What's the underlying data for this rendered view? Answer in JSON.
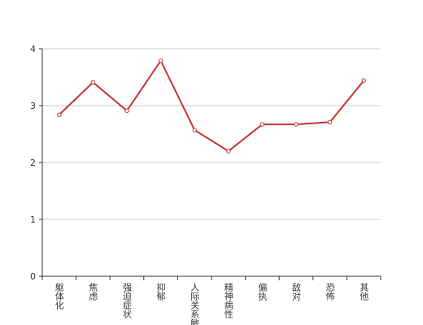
{
  "chart_data": {
    "type": "line",
    "categories": [
      "躯体化",
      "焦虑",
      "强迫症状",
      "抑郁",
      "人际关系敏感",
      "精神病性",
      "偏执",
      "敌对",
      "恐怖",
      "其他"
    ],
    "series": [
      {
        "color": "#c23531",
        "values": [
          2.84,
          3.41,
          2.91,
          3.79,
          2.57,
          2.2,
          2.67,
          2.67,
          2.71,
          3.44
        ]
      }
    ],
    "ylim": [
      0,
      4
    ],
    "yticks": [
      0,
      1,
      2,
      3,
      4
    ],
    "grid": true
  }
}
